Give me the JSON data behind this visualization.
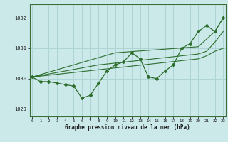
{
  "x": [
    0,
    1,
    2,
    3,
    4,
    5,
    6,
    7,
    8,
    9,
    10,
    11,
    12,
    13,
    14,
    15,
    16,
    17,
    18,
    19,
    20,
    21,
    22,
    23
  ],
  "main_line": [
    1030.05,
    1029.9,
    1029.9,
    1029.85,
    1029.8,
    1029.75,
    1029.35,
    1029.45,
    1029.85,
    1030.25,
    1030.45,
    1030.55,
    1030.85,
    1030.65,
    1030.05,
    1030.0,
    1030.25,
    1030.45,
    1031.0,
    1031.15,
    1031.55,
    1031.75,
    1031.55,
    1032.0
  ],
  "trend1": [
    1030.05,
    1030.13,
    1030.21,
    1030.29,
    1030.37,
    1030.45,
    1030.53,
    1030.61,
    1030.69,
    1030.77,
    1030.85,
    1030.87,
    1030.89,
    1030.91,
    1030.93,
    1030.95,
    1030.97,
    1030.99,
    1031.01,
    1031.03,
    1031.05,
    1031.3,
    1031.55,
    1032.0
  ],
  "trend2": [
    1030.05,
    1030.1,
    1030.15,
    1030.2,
    1030.25,
    1030.3,
    1030.35,
    1030.4,
    1030.45,
    1030.48,
    1030.51,
    1030.54,
    1030.57,
    1030.6,
    1030.63,
    1030.66,
    1030.69,
    1030.72,
    1030.75,
    1030.78,
    1030.81,
    1030.9,
    1031.2,
    1031.55
  ],
  "trend3": [
    1030.05,
    1030.08,
    1030.11,
    1030.14,
    1030.17,
    1030.2,
    1030.23,
    1030.26,
    1030.29,
    1030.32,
    1030.35,
    1030.38,
    1030.41,
    1030.44,
    1030.47,
    1030.5,
    1030.53,
    1030.56,
    1030.59,
    1030.62,
    1030.65,
    1030.75,
    1030.9,
    1031.0
  ],
  "line_color": "#2d6e2d",
  "bg_color": "#cce9ea",
  "grid_color": "#afd4d6",
  "xlabel": "Graphe pression niveau de la mer (hPa)",
  "ylim": [
    1028.75,
    1032.45
  ],
  "yticks": [
    1029,
    1030,
    1031,
    1032
  ],
  "xticks": [
    0,
    1,
    2,
    3,
    4,
    5,
    6,
    7,
    8,
    9,
    10,
    11,
    12,
    13,
    14,
    15,
    16,
    17,
    18,
    19,
    20,
    21,
    22,
    23
  ]
}
